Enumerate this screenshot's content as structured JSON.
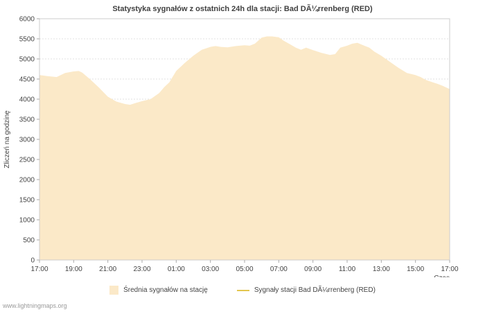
{
  "title": "Statystyka sygnałów z ostatnich 24h dla stacji: Bad DÃ¼rrenberg (RED)",
  "watermark": "www.lightningmaps.org",
  "colors": {
    "area_fill": "#fbe9c8",
    "line_yellow": "#e3c64f",
    "grid": "#e2e2e2",
    "axis": "#aaaaaa",
    "text": "#444444"
  },
  "legend": {
    "items": [
      {
        "marker": "area-swatch",
        "color": "#fbe9c8",
        "label": "Średnia sygnałów na stację"
      },
      {
        "marker": "line-swatch",
        "color": "#e3c64f",
        "label": "Sygnały stacji Bad DÃ¼rrenberg (RED)"
      }
    ]
  },
  "chart_data": {
    "type": "area",
    "title": "Statystyka sygnałów z ostatnich 24h dla stacji: Bad DÃ¼rrenberg (RED)",
    "xlabel": "Czas",
    "ylabel": "Zliczeń na godzinę",
    "xlim": [
      0,
      24
    ],
    "ylim": [
      0,
      6000
    ],
    "ytick_step": 500,
    "grid": "horizontal",
    "legend_position": "bottom",
    "x_ticks": [
      {
        "pos": 0,
        "label": "17:00"
      },
      {
        "pos": 2,
        "label": "19:00"
      },
      {
        "pos": 4,
        "label": "21:00"
      },
      {
        "pos": 6,
        "label": "23:00"
      },
      {
        "pos": 8,
        "label": "01:00"
      },
      {
        "pos": 10,
        "label": "03:00"
      },
      {
        "pos": 12,
        "label": "05:00"
      },
      {
        "pos": 14,
        "label": "07:00"
      },
      {
        "pos": 16,
        "label": "09:00"
      },
      {
        "pos": 18,
        "label": "11:00"
      },
      {
        "pos": 20,
        "label": "13:00"
      },
      {
        "pos": 22,
        "label": "15:00"
      },
      {
        "pos": 24,
        "label": "17:00"
      }
    ],
    "series": [
      {
        "name": "Średnia sygnałów na stację",
        "color": "#fbe9c8",
        "points": [
          [
            0,
            4600
          ],
          [
            0.5,
            4570
          ],
          [
            1,
            4550
          ],
          [
            1.5,
            4650
          ],
          [
            2,
            4690
          ],
          [
            2.3,
            4700
          ],
          [
            2.5,
            4660
          ],
          [
            3,
            4480
          ],
          [
            3.5,
            4280
          ],
          [
            4,
            4060
          ],
          [
            4.5,
            3940
          ],
          [
            5,
            3880
          ],
          [
            5.3,
            3860
          ],
          [
            5.6,
            3900
          ],
          [
            6,
            3950
          ],
          [
            6.5,
            4000
          ],
          [
            7,
            4150
          ],
          [
            7.3,
            4300
          ],
          [
            7.6,
            4420
          ],
          [
            8,
            4700
          ],
          [
            8.5,
            4900
          ],
          [
            9,
            5080
          ],
          [
            9.5,
            5230
          ],
          [
            10,
            5300
          ],
          [
            10.3,
            5320
          ],
          [
            10.6,
            5300
          ],
          [
            11,
            5290
          ],
          [
            11.5,
            5320
          ],
          [
            12,
            5340
          ],
          [
            12.3,
            5330
          ],
          [
            12.6,
            5380
          ],
          [
            13,
            5530
          ],
          [
            13.3,
            5560
          ],
          [
            13.6,
            5560
          ],
          [
            14,
            5540
          ],
          [
            14.3,
            5450
          ],
          [
            14.6,
            5380
          ],
          [
            15,
            5280
          ],
          [
            15.3,
            5230
          ],
          [
            15.6,
            5280
          ],
          [
            16,
            5220
          ],
          [
            16.5,
            5150
          ],
          [
            17,
            5100
          ],
          [
            17.3,
            5120
          ],
          [
            17.6,
            5280
          ],
          [
            18,
            5330
          ],
          [
            18.3,
            5380
          ],
          [
            18.6,
            5400
          ],
          [
            19,
            5330
          ],
          [
            19.3,
            5280
          ],
          [
            19.6,
            5180
          ],
          [
            20,
            5080
          ],
          [
            20.5,
            4930
          ],
          [
            21,
            4780
          ],
          [
            21.5,
            4650
          ],
          [
            22,
            4600
          ],
          [
            22.3,
            4550
          ],
          [
            22.6,
            4480
          ],
          [
            23,
            4420
          ],
          [
            23.3,
            4380
          ],
          [
            23.6,
            4330
          ],
          [
            24,
            4250
          ]
        ]
      }
    ]
  }
}
